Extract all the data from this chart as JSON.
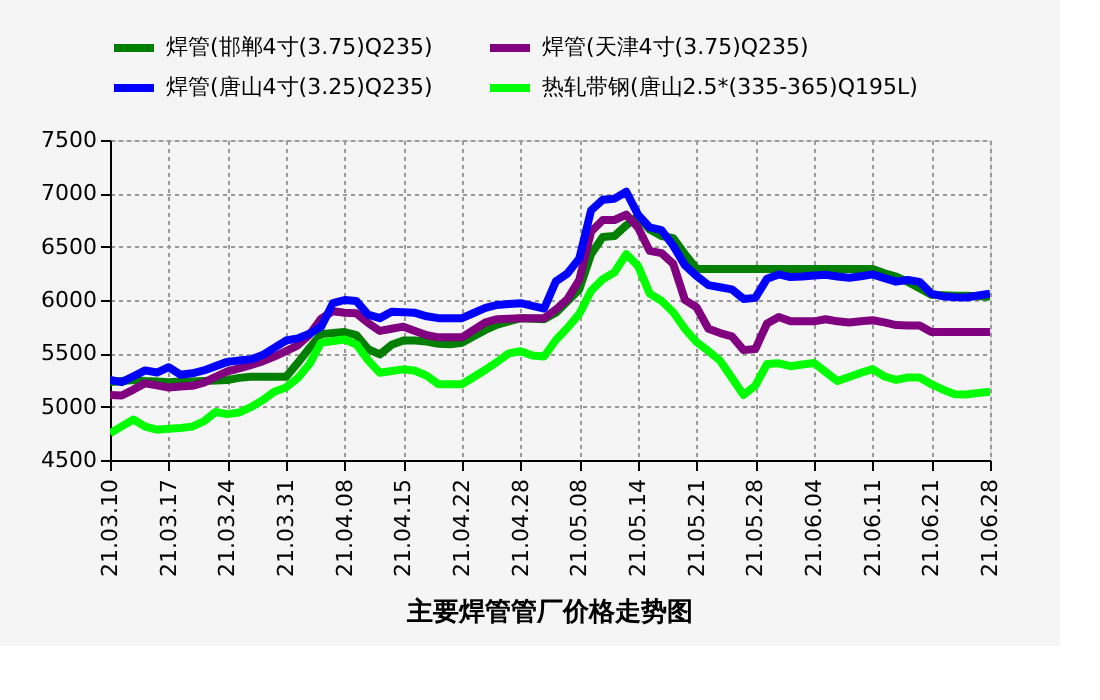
{
  "chart_data": {
    "type": "line",
    "title": "主要焊管管厂价格走势图",
    "categories": [
      "21.03.10",
      null,
      null,
      null,
      null,
      "21.03.17",
      null,
      null,
      null,
      null,
      "21.03.24",
      null,
      null,
      null,
      null,
      "21.03.31",
      null,
      null,
      null,
      null,
      "21.04.08",
      null,
      null,
      null,
      null,
      "21.04.15",
      null,
      null,
      null,
      null,
      "21.04.22",
      null,
      null,
      null,
      null,
      "21.04.28",
      null,
      null,
      null,
      null,
      "21.05.08",
      null,
      null,
      null,
      null,
      "21.05.14",
      null,
      null,
      null,
      null,
      "21.05.21",
      null,
      null,
      null,
      null,
      "21.05.28",
      null,
      null,
      null,
      null,
      "21.06.04",
      null,
      null,
      null,
      null,
      "21.06.11",
      null,
      null,
      null,
      null,
      "21.06.21",
      null,
      null,
      null,
      null,
      "21.06.28"
    ],
    "ylim": [
      4500,
      7500
    ],
    "yticks": [
      4500,
      5000,
      5500,
      6000,
      6500,
      7000,
      7500
    ],
    "grid": true,
    "legend": "top",
    "line_style": "solid",
    "marker": "none",
    "series": [
      {
        "name": "焊管(邯郸4寸(3.75)Q235)",
        "color": "#007f00",
        "values": [
          5230,
          5240,
          5250,
          5240,
          5235,
          5230,
          5235,
          5235,
          5240,
          5245,
          5250,
          5270,
          5280,
          5280,
          5280,
          5280,
          5410,
          5550,
          5680,
          5690,
          5700,
          5670,
          5540,
          5490,
          5580,
          5620,
          5620,
          5610,
          5590,
          5585,
          5600,
          5660,
          5720,
          5770,
          5800,
          5830,
          5825,
          5820,
          5880,
          5990,
          6100,
          6430,
          6590,
          6600,
          6700,
          6790,
          6660,
          6600,
          6580,
          6430,
          6290,
          6290,
          6290,
          6290,
          6290,
          6290,
          6290,
          6290,
          6290,
          6290,
          6290,
          6290,
          6290,
          6290,
          6290,
          6290,
          6250,
          6220,
          6170,
          6110,
          6050,
          6045,
          6040,
          6040,
          6035,
          6030
        ]
      },
      {
        "name": "焊管(天津4寸(3.75)Q235)",
        "color": "#800080",
        "values": [
          5110,
          5105,
          5160,
          5220,
          5200,
          5180,
          5190,
          5195,
          5225,
          5280,
          5330,
          5360,
          5390,
          5425,
          5470,
          5520,
          5575,
          5675,
          5825,
          5895,
          5880,
          5875,
          5785,
          5710,
          5730,
          5750,
          5710,
          5670,
          5650,
          5650,
          5650,
          5720,
          5790,
          5820,
          5825,
          5830,
          5830,
          5830,
          5910,
          6010,
          6190,
          6640,
          6750,
          6750,
          6800,
          6680,
          6460,
          6440,
          6340,
          6000,
          5930,
          5730,
          5690,
          5660,
          5530,
          5540,
          5780,
          5840,
          5800,
          5800,
          5800,
          5820,
          5800,
          5790,
          5800,
          5810,
          5790,
          5765,
          5760,
          5760,
          5700,
          5700,
          5700,
          5700,
          5700,
          5700
        ]
      },
      {
        "name": "焊管(唐山4寸(3.25)Q235)",
        "color": "#0000ff",
        "values": [
          5250,
          5230,
          5285,
          5340,
          5320,
          5370,
          5300,
          5313,
          5340,
          5380,
          5420,
          5432,
          5444,
          5484,
          5552,
          5620,
          5640,
          5683,
          5750,
          5970,
          6000,
          5990,
          5863,
          5830,
          5890,
          5885,
          5880,
          5847,
          5830,
          5830,
          5830,
          5878,
          5926,
          5954,
          5962,
          5970,
          5945,
          5920,
          6175,
          6250,
          6390,
          6840,
          6940,
          6950,
          7015,
          6800,
          6680,
          6655,
          6510,
          6325,
          6225,
          6140,
          6120,
          6100,
          6010,
          6020,
          6200,
          6240,
          6215,
          6220,
          6230,
          6237,
          6220,
          6208,
          6223,
          6240,
          6205,
          6172,
          6187,
          6170,
          6060,
          6034,
          6026,
          6024,
          6042,
          6060
        ]
      },
      {
        "name": "热轧带钢(唐山2.5*(335-365)Q195L)",
        "color": "#00ff00",
        "values": [
          4750,
          4815,
          4880,
          4813,
          4784,
          4792,
          4800,
          4813,
          4863,
          4950,
          4930,
          4945,
          4995,
          5060,
          5140,
          5180,
          5267,
          5400,
          5600,
          5615,
          5630,
          5583,
          5435,
          5318,
          5334,
          5350,
          5337,
          5290,
          5210,
          5210,
          5210,
          5278,
          5346,
          5420,
          5500,
          5520,
          5480,
          5470,
          5625,
          5740,
          5870,
          6085,
          6195,
          6260,
          6430,
          6320,
          6060,
          5993,
          5885,
          5730,
          5605,
          5522,
          5430,
          5270,
          5110,
          5197,
          5400,
          5406,
          5379,
          5395,
          5410,
          5325,
          5240,
          5279,
          5318,
          5352,
          5283,
          5251,
          5273,
          5274,
          5211,
          5160,
          5116,
          5114,
          5129,
          5140
        ]
      }
    ]
  }
}
